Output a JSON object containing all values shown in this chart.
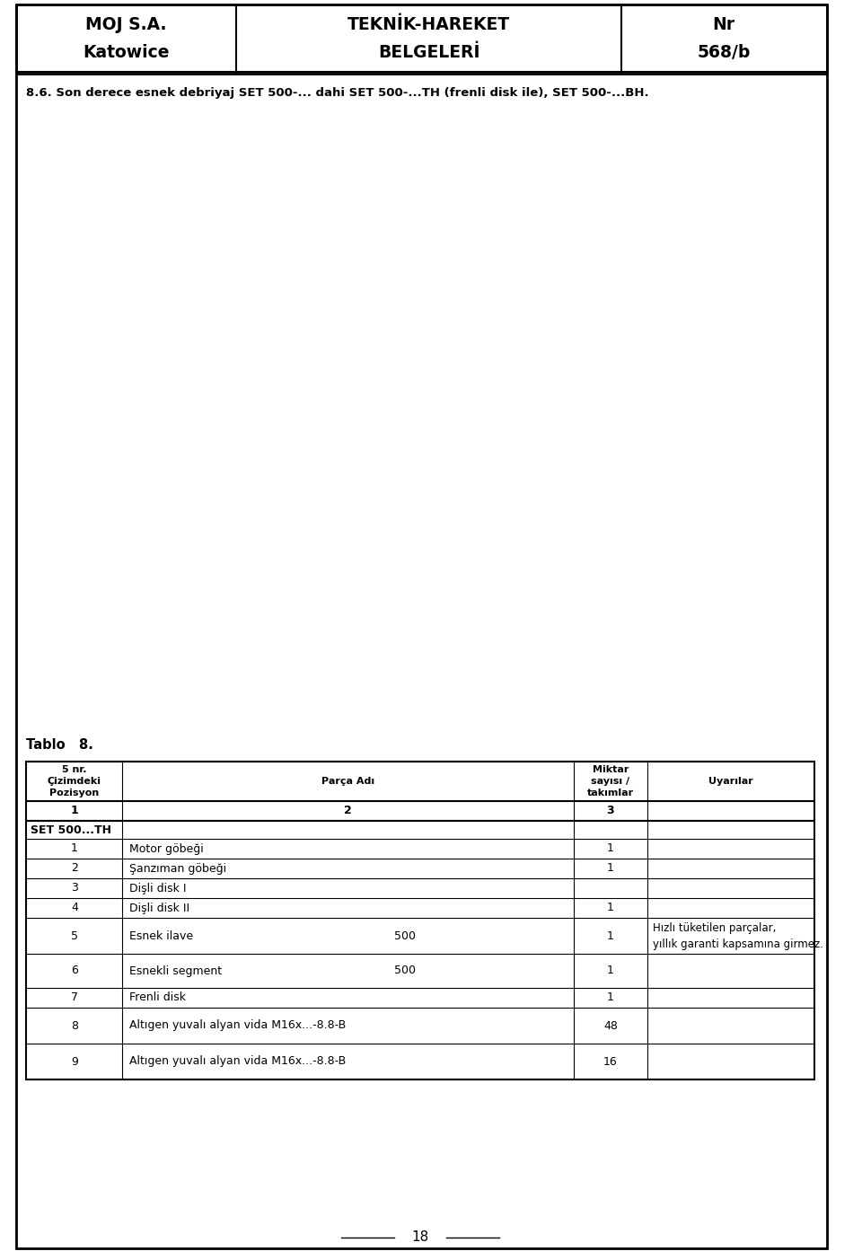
{
  "header_left": "MOJ S.A.\nKatowice",
  "header_center": "TEKNİK-HAREKET\nBELGELERİ",
  "header_right": "Nr\n568/b",
  "section_title": "8.6. Son derece esnek debriyaj SET 500-... dahi SET 500-...TH (frenli disk ile), SET 500-...BH.",
  "tablo_label": "Tablo   8.",
  "table_col_headers": [
    "5 nr.\nÇizimdeki\nPozisyon",
    "Parça Adı",
    "Miktar\nsayısı /\ntakımlar",
    "Uyarılar"
  ],
  "table_subheaders": [
    "1",
    "2",
    "3",
    ""
  ],
  "table_rows": [
    {
      "pos": "SET 500...TH",
      "part": "",
      "qty500": "",
      "qty": "",
      "note": "",
      "bold": true
    },
    {
      "pos": "1",
      "part": "Motor göbeği",
      "qty500": "",
      "qty": "1",
      "note": "",
      "bold": false
    },
    {
      "pos": "2",
      "part": "Şanzıman göbeği",
      "qty500": "",
      "qty": "1",
      "note": "",
      "bold": false
    },
    {
      "pos": "3",
      "part": "Dişli disk I",
      "qty500": "",
      "qty": "",
      "note": "",
      "bold": false
    },
    {
      "pos": "4",
      "part": "Dişli disk II",
      "qty500": "",
      "qty": "1",
      "note": "",
      "bold": false
    },
    {
      "pos": "5",
      "part": "Esnek ilave",
      "qty500": "500",
      "qty": "1",
      "note": "Hızlı tüketilen parçalar,\nyıllık garanti kapsamına girmez.",
      "bold": false
    },
    {
      "pos": "6",
      "part": "Esnekli segment",
      "qty500": "500",
      "qty": "1",
      "note": "",
      "bold": false
    },
    {
      "pos": "7",
      "part": "Frenli disk",
      "qty500": "",
      "qty": "1",
      "note": "",
      "bold": false
    },
    {
      "pos": "8",
      "part": "Altıgen yuvalı alyan vida M16x...-8.8-B",
      "qty500": "",
      "qty": "48",
      "note": "",
      "bold": false
    },
    {
      "pos": "9",
      "part": "Altıgen yuvalı alyan vida M16x...-8.8-B",
      "qty500": "",
      "qty": "16",
      "note": "",
      "bold": false
    }
  ],
  "page_number": "18",
  "bg_color": "#ffffff",
  "line_color": "#000000",
  "text_color": "#000000"
}
